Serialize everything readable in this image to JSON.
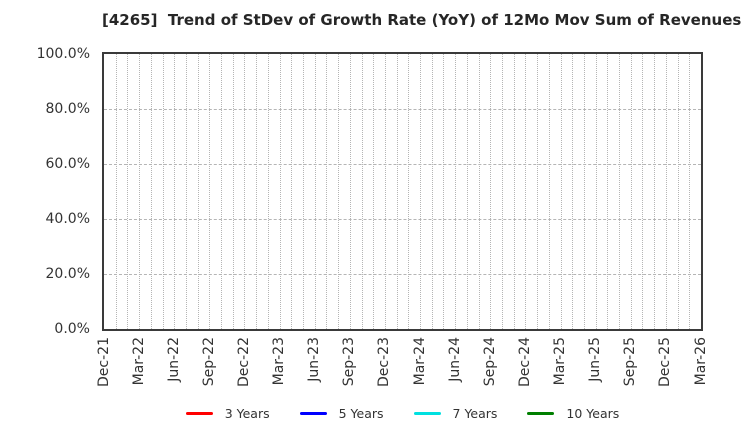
{
  "chart_data": {
    "type": "line",
    "title": "[4265]  Trend of StDev of Growth Rate (YoY) of 12Mo Mov Sum of Revenues",
    "xlabel": "",
    "ylabel": "",
    "x_tick_labels": [
      "Dec-21",
      "Mar-22",
      "Jun-22",
      "Sep-22",
      "Dec-22",
      "Mar-23",
      "Jun-23",
      "Sep-23",
      "Dec-23",
      "Mar-24",
      "Jun-24",
      "Sep-24",
      "Dec-24",
      "Mar-25",
      "Jun-25",
      "Sep-25",
      "Dec-25",
      "Mar-26"
    ],
    "x_months_total": 51,
    "x_tick_step_months": 3,
    "y_ticks": [
      0,
      20,
      40,
      60,
      80,
      100
    ],
    "y_tick_labels": [
      "0.0%",
      "20.0%",
      "40.0%",
      "60.0%",
      "80.0%",
      "100.0%"
    ],
    "ylim": [
      0,
      100
    ],
    "grid": "on",
    "legend_position": "bottom-center",
    "series": [
      {
        "name": "3 Years",
        "color": "#ff0000",
        "x": [],
        "values": []
      },
      {
        "name": "5 Years",
        "color": "#0000ff",
        "x": [],
        "values": []
      },
      {
        "name": "7 Years",
        "color": "#00e0e0",
        "x": [],
        "values": []
      },
      {
        "name": "10 Years",
        "color": "#007f00",
        "x": [],
        "values": []
      }
    ]
  },
  "styles": {
    "grid_color": "#b5b5b5",
    "axis_border_color": "#3a3a3a",
    "title_color": "#262626",
    "tick_label_color": "#333333",
    "background_color": "#ffffff"
  }
}
